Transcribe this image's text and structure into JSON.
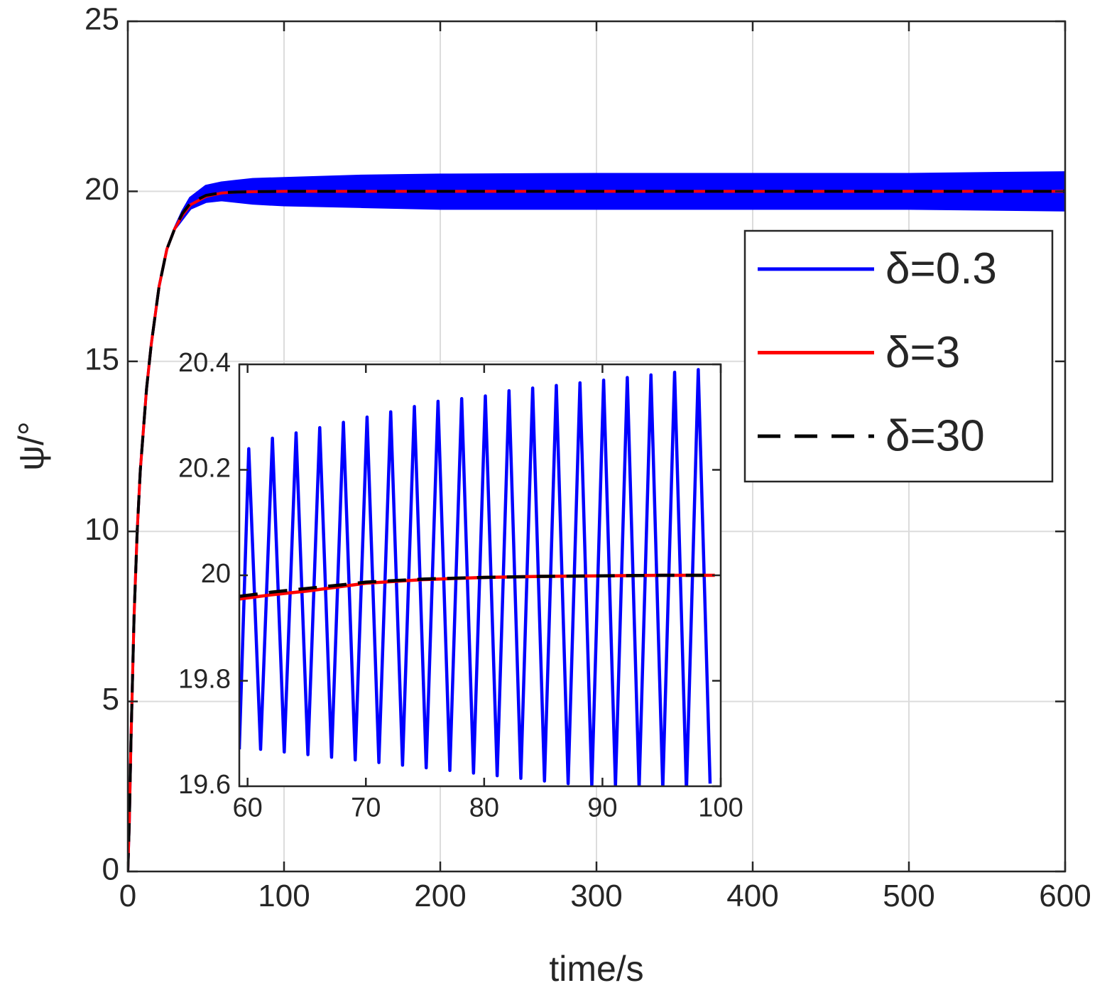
{
  "chart_data": [
    {
      "type": "line",
      "xlabel": "time/s",
      "ylabel": "ψ/°",
      "xlim": [
        0,
        600
      ],
      "ylim": [
        0,
        25
      ],
      "xticks": [
        0,
        100,
        200,
        300,
        400,
        500,
        600
      ],
      "yticks": [
        0,
        5,
        10,
        15,
        20,
        25
      ],
      "grid": true,
      "legend": "upper right",
      "x": [
        0,
        1,
        2,
        4,
        6,
        8,
        10,
        12,
        15,
        20,
        25,
        30,
        35,
        40,
        50,
        60,
        70,
        80,
        100,
        150,
        200,
        300,
        400,
        500,
        600
      ],
      "series": [
        {
          "name": "δ=0.3",
          "color": "#0000ff",
          "style": "band",
          "values": [
            0,
            1.5,
            3.8,
            7.5,
            10,
            11.8,
            13,
            14.2,
            15.5,
            17.2,
            18.3,
            18.9,
            19.4,
            19.8,
            20.15,
            20.25,
            20.3,
            20.35,
            20.38,
            20.45,
            20.48,
            20.5,
            20.5,
            20.5,
            20.55
          ],
          "band_low": [
            0,
            1.5,
            3.8,
            7.5,
            10,
            11.8,
            13,
            14.2,
            15.5,
            17.2,
            18.3,
            18.9,
            19.2,
            19.5,
            19.7,
            19.75,
            19.7,
            19.65,
            19.6,
            19.55,
            19.5,
            19.5,
            19.5,
            19.5,
            19.45
          ]
        },
        {
          "name": "δ=3",
          "color": "#ff0000",
          "style": "solid",
          "values": [
            0,
            1.5,
            3.8,
            7.5,
            10,
            11.8,
            13,
            14.2,
            15.5,
            17.2,
            18.3,
            18.9,
            19.3,
            19.6,
            19.85,
            19.95,
            19.98,
            19.99,
            20,
            20,
            20,
            20,
            20,
            20,
            20
          ]
        },
        {
          "name": "δ=30",
          "color": "#000000",
          "style": "dashed",
          "values": [
            0,
            1.5,
            3.8,
            7.5,
            10,
            11.8,
            13,
            14.2,
            15.5,
            17.2,
            18.3,
            18.9,
            19.35,
            19.65,
            19.88,
            19.96,
            19.98,
            19.99,
            20,
            20,
            20,
            20,
            20,
            20,
            20
          ]
        }
      ]
    },
    {
      "type": "line",
      "xlim": [
        59.3,
        100
      ],
      "ylim": [
        19.6,
        20.4
      ],
      "xticks": [
        60,
        70,
        80,
        90,
        100
      ],
      "yticks": [
        19.6,
        19.8,
        20,
        20.2,
        20.4
      ],
      "grid": false,
      "series": [
        {
          "color": "#0000ff",
          "style": "solid",
          "x": [
            59.3,
            60.1,
            61.1,
            62.1,
            63.1,
            64.1,
            65.1,
            66.1,
            67.1,
            68.1,
            69.1,
            70.1,
            71.1,
            72.1,
            73.1,
            74.1,
            75.1,
            76.1,
            77.1,
            78.1,
            79.1,
            80.1,
            81.1,
            82.1,
            83.1,
            84.1,
            85.1,
            86.1,
            87.1,
            88.1,
            89.1,
            90.1,
            91.1,
            92.1,
            93.1,
            94.1,
            95.1,
            96.1,
            97.1,
            98.1,
            99.1
          ],
          "values": [
            19.67,
            20.24,
            19.67,
            20.26,
            19.665,
            20.27,
            19.66,
            20.28,
            19.655,
            20.29,
            19.65,
            20.3,
            19.645,
            20.31,
            19.64,
            20.32,
            19.635,
            20.33,
            19.63,
            20.335,
            19.625,
            20.34,
            19.62,
            20.35,
            19.615,
            20.355,
            19.61,
            20.36,
            19.605,
            20.365,
            19.6,
            20.37,
            19.6,
            20.375,
            19.595,
            20.38,
            19.595,
            20.385,
            19.59,
            20.39,
            19.605
          ]
        },
        {
          "color": "#ff0000",
          "style": "solid",
          "x": [
            59.3,
            62,
            65,
            68,
            70,
            75,
            80,
            85,
            90,
            95,
            99.5
          ],
          "values": [
            19.955,
            19.963,
            19.97,
            19.979,
            19.985,
            19.992,
            19.996,
            19.998,
            19.999,
            20,
            20
          ]
        },
        {
          "color": "#000000",
          "style": "dashed",
          "x": [
            59.3,
            62,
            65,
            68,
            70,
            75,
            80,
            85,
            90,
            95,
            99.5
          ],
          "values": [
            19.96,
            19.968,
            19.975,
            19.982,
            19.987,
            19.993,
            19.996,
            19.998,
            19.999,
            20,
            20
          ]
        }
      ]
    }
  ]
}
